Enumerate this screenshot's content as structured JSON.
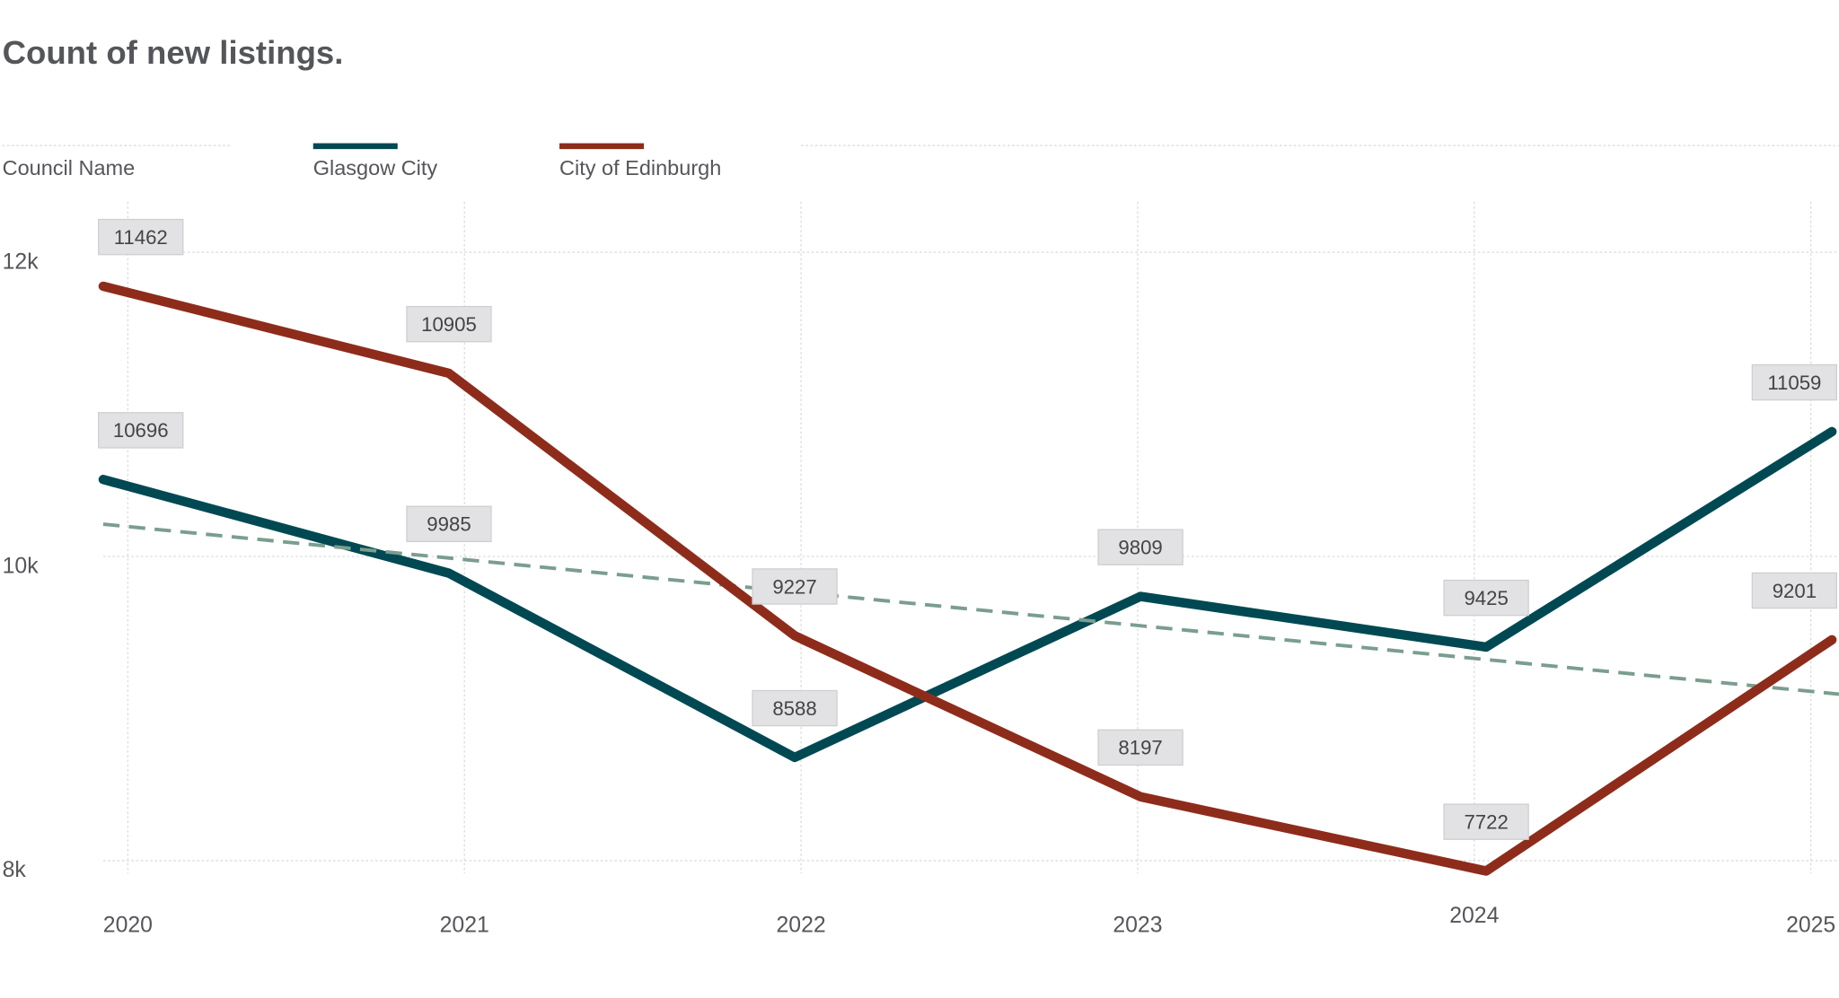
{
  "chart_data": {
    "type": "line",
    "title": "Count of new listings.",
    "legend_title": "Council Name",
    "legend_position": "top-left",
    "x": [
      "2020",
      "2021",
      "2022",
      "2023",
      "2024",
      "2025"
    ],
    "y_ticks": [
      "12k",
      "10k",
      "8k"
    ],
    "y_tick_values": [
      12000,
      10000,
      8000
    ],
    "grid": true,
    "series": [
      {
        "name": "Glasgow City",
        "color": "#004953",
        "values": [
          10696,
          9985,
          8588,
          9809,
          9425,
          11059
        ],
        "axis_range": [
          7743,
          12357
        ]
      },
      {
        "name": "City of Edinburgh",
        "color": "#8e2c1b",
        "values": [
          11462,
          10905,
          9227,
          8197,
          7722,
          9201
        ],
        "axis_range": [
          7736,
          11627
        ]
      }
    ],
    "trend_line": {
      "series": "Glasgow City",
      "color": "#7a9e8e",
      "start": 10357,
      "end": 9068
    }
  }
}
